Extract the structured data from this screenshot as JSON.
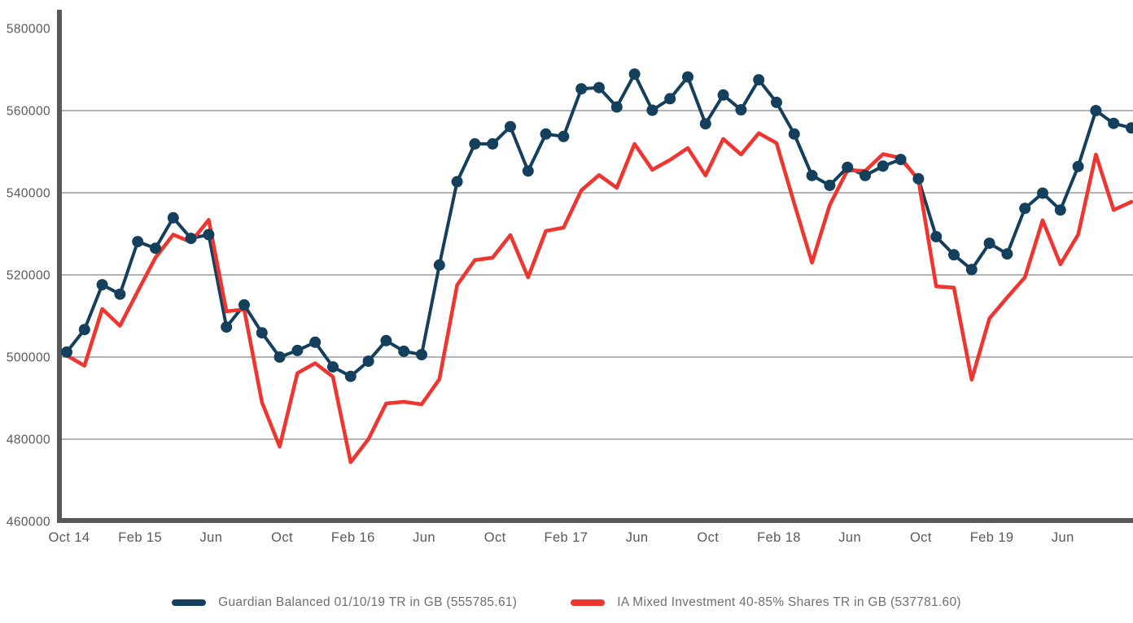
{
  "chart_data": {
    "type": "line",
    "title": "",
    "x_tick_labels": [
      "Oct 14",
      "Feb 15",
      "Jun",
      "Oct",
      "Feb 16",
      "Jun",
      "Oct",
      "Feb 17",
      "Jun",
      "Oct",
      "Feb 18",
      "Jun",
      "Oct",
      "Feb 19",
      "Jun"
    ],
    "x_tick_interval": 4,
    "x_range_note": "monthly points, Oct 2014 to Oct 2019",
    "y_ticks": [
      460000,
      480000,
      500000,
      520000,
      540000,
      560000,
      580000
    ],
    "ylim": [
      460000,
      584000
    ],
    "grid": "horizontal",
    "legend_position": "bottom-center",
    "series": [
      {
        "name": "Guardian Balanced 01/10/19 TR in GB (555785.61)",
        "color": "#143F5D",
        "markers": true,
        "values": [
          501200,
          506700,
          517600,
          515300,
          528100,
          526500,
          533900,
          528900,
          529800,
          507300,
          512700,
          505900,
          500000,
          501600,
          503600,
          497600,
          495300,
          499000,
          504000,
          501400,
          500600,
          522400,
          542700,
          551900,
          551900,
          556100,
          545300,
          554300,
          553700,
          565300,
          565600,
          560900,
          568900,
          560100,
          562900,
          568200,
          556800,
          563800,
          560200,
          567500,
          562000,
          554300,
          544200,
          541800,
          546200,
          544200,
          546500,
          548100,
          543400,
          529300,
          524900,
          521300,
          527700,
          525100,
          536200,
          539900,
          535800,
          546400,
          560000,
          556900,
          555786
        ]
      },
      {
        "name": "IA Mixed Investment 40-85% Shares TR in GB (537781.60)",
        "color": "#EE3530",
        "markers": false,
        "values": [
          500400,
          497900,
          511700,
          507600,
          516000,
          524200,
          529800,
          528000,
          533400,
          511100,
          511600,
          489000,
          478200,
          496100,
          498500,
          495200,
          474400,
          480000,
          488700,
          489100,
          488500,
          494600,
          517500,
          523600,
          524200,
          529700,
          519400,
          530700,
          531500,
          540600,
          544300,
          541200,
          551900,
          545600,
          548000,
          550900,
          544200,
          553100,
          549300,
          554500,
          552100,
          537400,
          523000,
          537000,
          545500,
          545300,
          549400,
          548500,
          543100,
          517200,
          516900,
          494500,
          509400,
          514500,
          519400,
          533300,
          522600,
          529800,
          549300,
          535800,
          537782
        ]
      }
    ],
    "colors": {
      "axis": "#58595b",
      "gridline": "#87888a",
      "tick_text": "#58595b",
      "legend_text": "#6d6e71"
    }
  }
}
